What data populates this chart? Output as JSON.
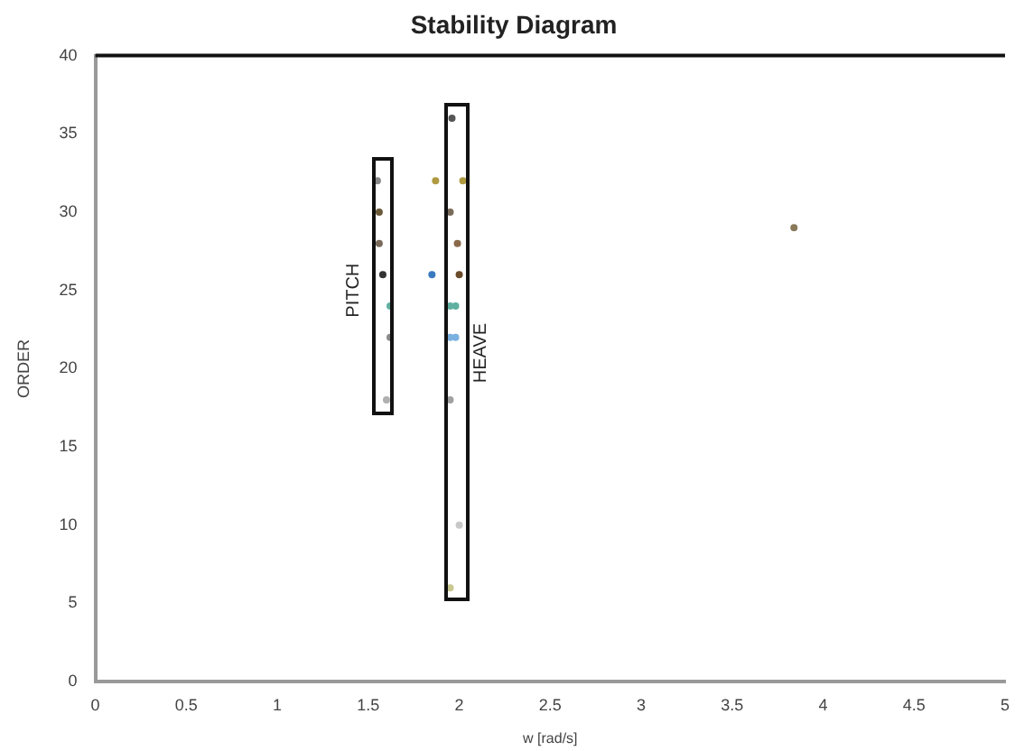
{
  "chart_data": {
    "type": "scatter",
    "title": "Stability Diagram",
    "xlabel": "w [rad/s]",
    "ylabel": "ORDER",
    "xlim": [
      0,
      5
    ],
    "xticks": [
      0,
      0.5,
      1,
      1.5,
      2,
      2.5,
      3,
      3.5,
      4,
      4.5,
      5
    ],
    "ylim": [
      0,
      40
    ],
    "yticks": [
      0,
      5,
      10,
      15,
      20,
      25,
      30,
      35,
      40
    ],
    "grid": false,
    "legend": false,
    "marker": "circle",
    "x": [
      1.55,
      1.56,
      1.56,
      1.58,
      1.62,
      1.62,
      1.6,
      1.96,
      1.87,
      2.02,
      1.95,
      1.99,
      1.85,
      2.0,
      1.95,
      1.98,
      1.95,
      1.98,
      1.95,
      2.0,
      1.95,
      3.84
    ],
    "values": [
      32,
      30,
      28,
      26,
      24,
      22,
      18,
      36,
      32,
      32,
      30,
      28,
      26,
      26,
      24,
      24,
      22,
      22,
      18,
      10,
      6,
      29
    ],
    "colors": [
      "#8a8a8a",
      "#6b5a3a",
      "#7a6a5a",
      "#333333",
      "#5fb0a0",
      "#8a8a8a",
      "#b0b0b0",
      "#555555",
      "#b09a40",
      "#b09a40",
      "#7a6a5a",
      "#8a6a4a",
      "#3a7ac0",
      "#6b4a2a",
      "#5fb0a0",
      "#5fb0a0",
      "#7ab0e0",
      "#7ab0e0",
      "#a0a0a0",
      "#c8c8c8",
      "#c8c890",
      "#8a7a5a"
    ],
    "annotations": [
      "PITCH",
      "HEAVE"
    ]
  }
}
